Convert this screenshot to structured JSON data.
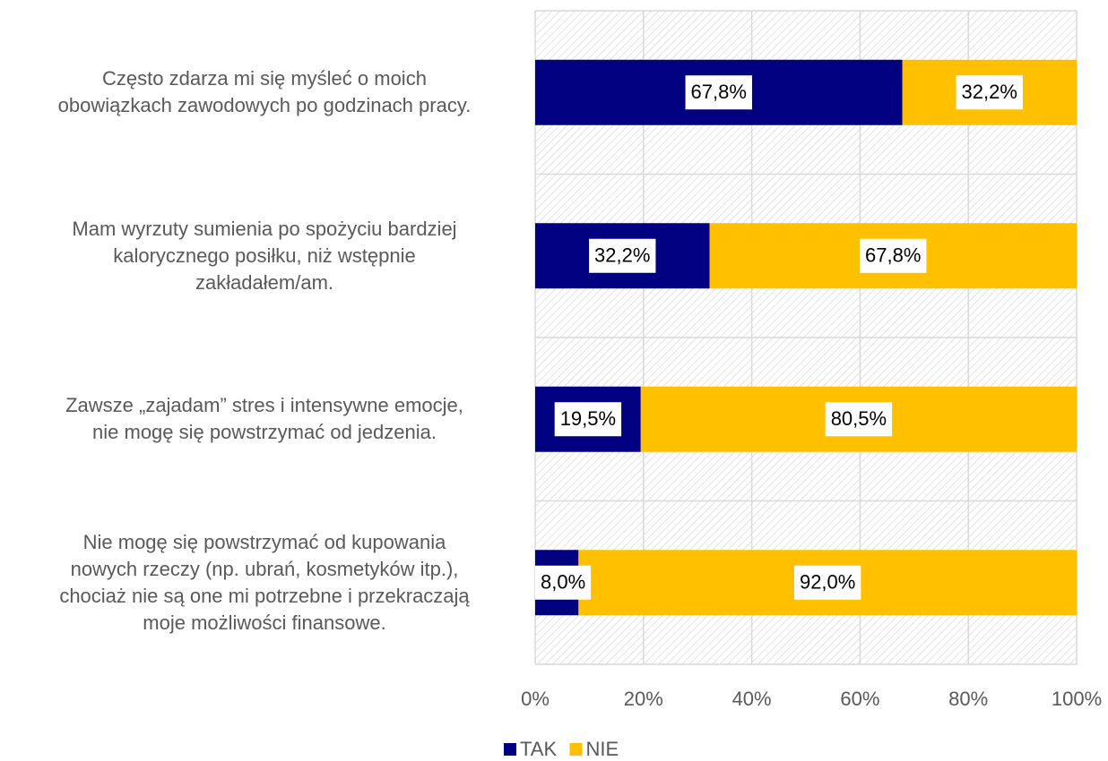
{
  "chart_data": {
    "type": "stacked_bar_horizontal",
    "categories": [
      "Często zdarza mi się myśleć o moich\nobowiązkach zawodowych po godzinach pracy.",
      "Mam wyrzuty sumienia po spożyciu bardziej\nkalorycznego posiłku, niż wstępnie\nzakładałem/am.",
      "Zawsze „zajadam” stres i intensywne emocje,\nnie mogę się powstrzymać od jedzenia.",
      "Nie mogę się powstrzymać od kupowania\nnowych rzeczy (np. ubrań, kosmetyków itp.),\nchociaż nie są one mi potrzebne i przekraczają\nmoje możliwości finansowe."
    ],
    "series": [
      {
        "name": "TAK",
        "color": "#000080",
        "values": [
          67.8,
          32.2,
          19.5,
          8.0
        ],
        "value_labels": [
          "67,8%",
          "32,2%",
          "19,5%",
          "8,0%"
        ]
      },
      {
        "name": "NIE",
        "color": "#ffc000",
        "values": [
          32.2,
          67.8,
          80.5,
          92.0
        ],
        "value_labels": [
          "32,2%",
          "67,8%",
          "80,5%",
          "92,0%"
        ]
      }
    ],
    "xlim": [
      0,
      100
    ],
    "xticks": [
      {
        "value": 0,
        "label": "0%"
      },
      {
        "value": 20,
        "label": "20%"
      },
      {
        "value": 40,
        "label": "40%"
      },
      {
        "value": 60,
        "label": "60%"
      },
      {
        "value": 80,
        "label": "80%"
      },
      {
        "value": 100,
        "label": "100%"
      }
    ],
    "grid": true,
    "legend": "bottom"
  }
}
